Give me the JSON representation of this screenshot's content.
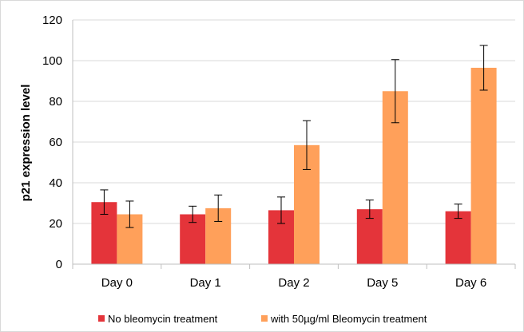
{
  "chart_data": {
    "type": "bar",
    "title": "",
    "xlabel": "",
    "ylabel": "p21 expression level",
    "ylim": [
      0,
      120
    ],
    "yticks": [
      0,
      20,
      40,
      60,
      80,
      100,
      120
    ],
    "grid": true,
    "legend_position": "bottom",
    "categories": [
      "Day 0",
      "Day 1",
      "Day 2",
      "Day 5",
      "Day 6"
    ],
    "series": [
      {
        "name": "No bleomycin treatment",
        "color": "#e4343a",
        "values": [
          30.5,
          24.5,
          26.5,
          27,
          26
        ],
        "error": [
          6,
          4,
          6.5,
          4.5,
          3.5
        ]
      },
      {
        "name": "with 50µg/ml Bleomycin treatment",
        "color": "#ffa05a",
        "values": [
          24.5,
          27.5,
          58.5,
          85,
          96.5
        ],
        "error": [
          6.5,
          6.5,
          12,
          15.5,
          11
        ]
      }
    ]
  }
}
